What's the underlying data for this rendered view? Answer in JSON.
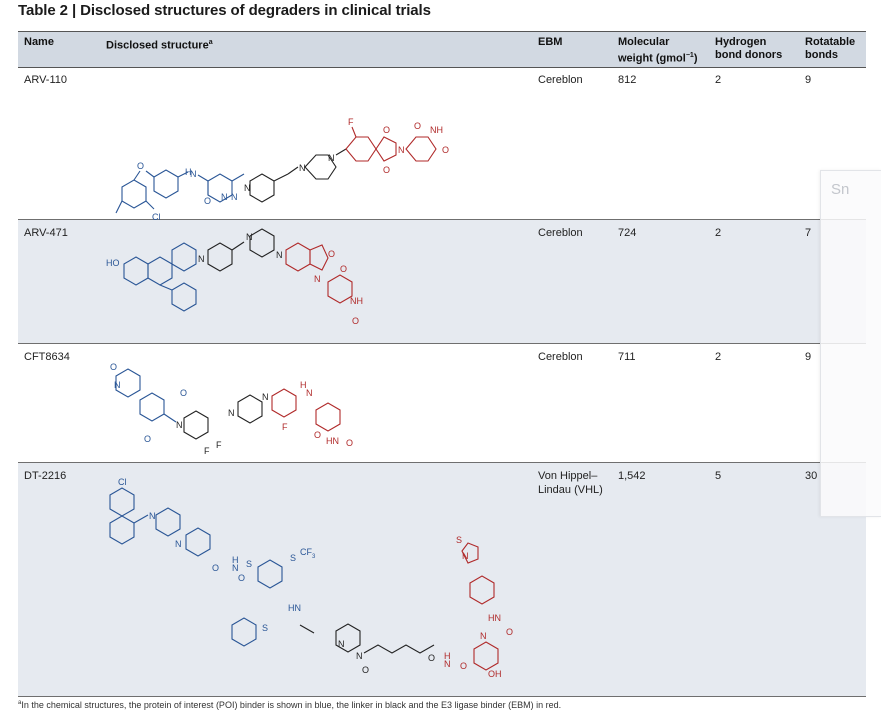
{
  "title": "Table 2 | Disclosed structures of degraders in clinical trials",
  "headers": {
    "name": "Name",
    "structure": "Disclosed structure",
    "structure_sup": "a",
    "ebm": "EBM",
    "mw_line1": "Molecular",
    "mw_line2": "weight (gmol",
    "mw_sup": "−1",
    "mw_close": ")",
    "hbd_line1": "Hydrogen",
    "hbd_line2": "bond donors",
    "rot_line1": "Rotatable",
    "rot_line2": "bonds"
  },
  "rows": [
    {
      "name": "ARV-110",
      "ebm": "Cereblon",
      "ebm2": "",
      "mw": "812",
      "hbd": "2",
      "rot": "9"
    },
    {
      "name": "ARV-471",
      "ebm": "Cereblon",
      "ebm2": "",
      "mw": "724",
      "hbd": "2",
      "rot": "7"
    },
    {
      "name": "CFT8634",
      "ebm": "Cereblon",
      "ebm2": "",
      "mw": "711",
      "hbd": "2",
      "rot": "9"
    },
    {
      "name": "DT-2216",
      "ebm": "Von Hippel–",
      "ebm2": "Lindau (VHL)",
      "mw": "1,542",
      "hbd": "5",
      "rot": "30"
    }
  ],
  "footnote": {
    "sup": "a",
    "text": "In the chemical structures, the protein of interest (POI) binder is shown in blue, the linker in black and the E3 ligase binder (EBM) in red."
  },
  "overlay": {
    "label": "Sn"
  },
  "colors": {
    "poi": "#2a5696",
    "linker": "#222222",
    "ebm": "#b02a2a",
    "header_bg": "#d2d9e2",
    "alt_row_bg": "#e6eaf0"
  },
  "atoms": {
    "F": "F",
    "O": "O",
    "N": "N",
    "NH": "NH",
    "HN": "HN",
    "H": "H",
    "Cl": "Cl",
    "HO": "HO",
    "OH": "OH",
    "S": "S",
    "CF3": "CF",
    "CF3_sub": "3",
    "HN_dt": "HN"
  }
}
